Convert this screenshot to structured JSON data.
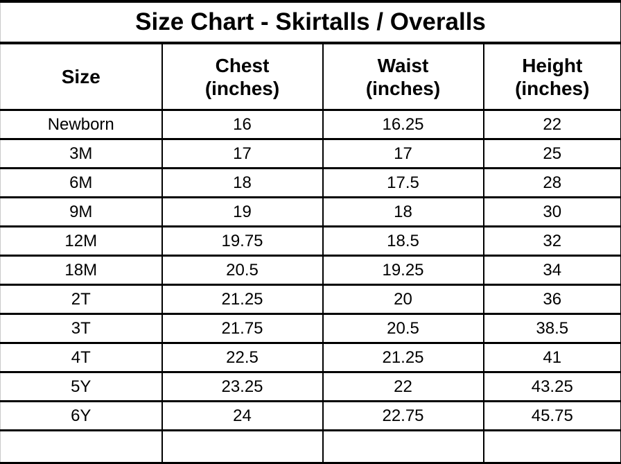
{
  "title": "Size Chart - Skirtalls / Overalls",
  "columns": [
    {
      "label": "Size",
      "unit": ""
    },
    {
      "label": "Chest",
      "unit": "(inches)"
    },
    {
      "label": "Waist",
      "unit": "(inches)"
    },
    {
      "label": "Height",
      "unit": "(inches)"
    }
  ],
  "rows": [
    {
      "size": "Newborn",
      "chest": "16",
      "waist": "16.25",
      "height": "22"
    },
    {
      "size": "3M",
      "chest": "17",
      "waist": "17",
      "height": "25"
    },
    {
      "size": "6M",
      "chest": "18",
      "waist": "17.5",
      "height": "28"
    },
    {
      "size": "9M",
      "chest": "19",
      "waist": "18",
      "height": "30"
    },
    {
      "size": "12M",
      "chest": "19.75",
      "waist": "18.5",
      "height": "32"
    },
    {
      "size": "18M",
      "chest": "20.5",
      "waist": "19.25",
      "height": "34"
    },
    {
      "size": "2T",
      "chest": "21.25",
      "waist": "20",
      "height": "36"
    },
    {
      "size": "3T",
      "chest": "21.75",
      "waist": "20.5",
      "height": "38.5"
    },
    {
      "size": "4T",
      "chest": "22.5",
      "waist": "21.25",
      "height": "41"
    },
    {
      "size": "5Y",
      "chest": "23.25",
      "waist": "22",
      "height": "43.25"
    },
    {
      "size": "6Y",
      "chest": "24",
      "waist": "22.75",
      "height": "45.75"
    }
  ],
  "colors": {
    "border": "#000000",
    "background": "#ffffff",
    "text": "#000000",
    "left_edge": "#c9c9c9"
  }
}
